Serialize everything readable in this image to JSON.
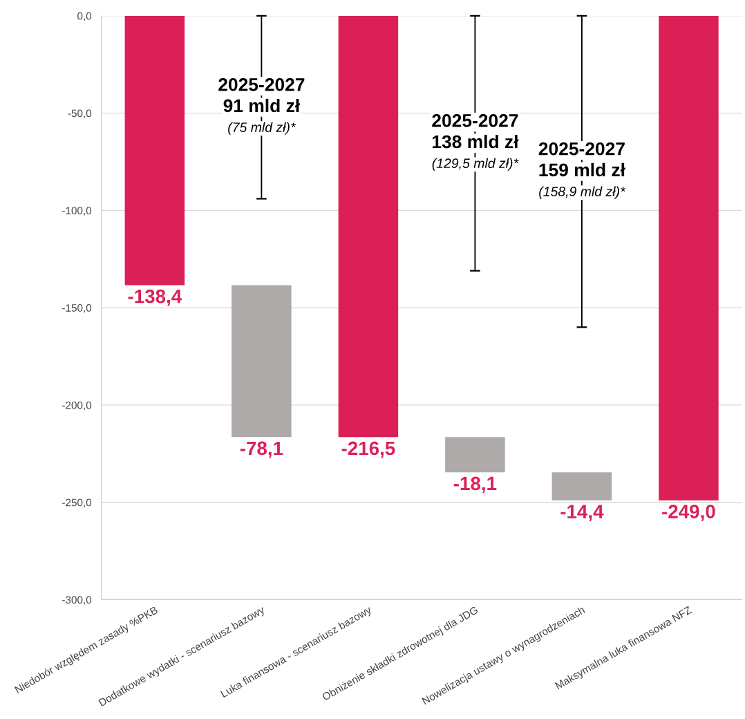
{
  "chart_data": {
    "type": "bar",
    "categories": [
      "Niedobór względem zasady %PKB",
      "Dodatkowe wydatki - scenariusz bazowy",
      "Luka finansowa - scenariusz bazowy",
      "Obniżenie składki zdrowotnej dla JDG",
      "Nowelizacja ustawy o wynagrodzeniach",
      "Maksymalna luka finansowa NFZ"
    ],
    "values": [
      -138.4,
      -78.1,
      -216.5,
      -18.1,
      -14.4,
      -249.0
    ],
    "base": [
      0,
      -138.4,
      0,
      -216.5,
      -234.6,
      0
    ],
    "colors": [
      "#db2057",
      "#aeaaa9",
      "#db2057",
      "#aeaaa9",
      "#aeaaa9",
      "#db2057"
    ],
    "value_labels": [
      "-138,4",
      "-78,1",
      "-216,5",
      "-18,1",
      "-14,4",
      "-249,0"
    ],
    "ylim": [
      -300,
      0
    ],
    "yticks": [
      {
        "value": -300,
        "label": "-300,0"
      },
      {
        "value": -250,
        "label": "-250,0"
      },
      {
        "value": -200,
        "label": "-200,0"
      },
      {
        "value": -150,
        "label": "-150,0"
      },
      {
        "value": -100,
        "label": "-100,0"
      },
      {
        "value": -50,
        "label": "-50,0"
      },
      {
        "value": 0,
        "label": "0,0"
      }
    ],
    "grid": "y",
    "series": [
      {
        "type": "bar",
        "color": "#000000",
        "values": [
          null,
          -94,
          null,
          -131,
          -160,
          null
        ]
      }
    ],
    "annotations": [
      "2025-2027\n91 mld zł\n(75 mld zł)*",
      "2025-2027\n138 mld zł\n(129,5 mld zł)*",
      "2025-2027\n159 mld zł\n(158,9 mld zł)*"
    ]
  }
}
